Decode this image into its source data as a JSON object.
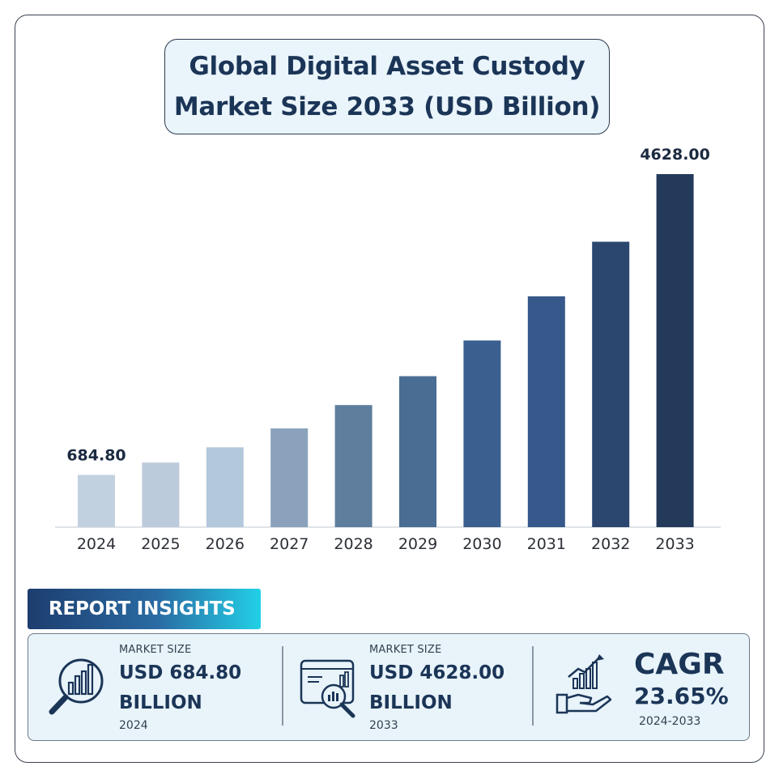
{
  "title_line1": "Global Digital Asset Custody",
  "title_line2": "Market Size 2033 (USD Billion)",
  "chart_data": {
    "type": "bar",
    "categories": [
      "2024",
      "2025",
      "2026",
      "2027",
      "2028",
      "2029",
      "2030",
      "2031",
      "2032",
      "2033"
    ],
    "values": [
      684.8,
      846.8,
      1047.0,
      1294.5,
      1600.6,
      1979.1,
      2447.1,
      3025.8,
      3741.3,
      4628.0
    ],
    "data_labels": [
      "684.80",
      "",
      "",
      "",
      "",
      "",
      "",
      "",
      "",
      "4628.00"
    ],
    "ylim": [
      0,
      4628.0
    ],
    "colors": [
      "#c2d1e0",
      "#bccbdb",
      "#b4c8dc",
      "#8aa2bb",
      "#5f7e9e",
      "#4a6d94",
      "#3b5f8e",
      "#37588a",
      "#2b4770",
      "#243a5a"
    ],
    "xlabel": "",
    "ylabel": "",
    "grid": false
  },
  "insights": {
    "header": "REPORT INSIGHTS",
    "card1": {
      "label": "MARKET SIZE",
      "value_line1": "USD 684.80",
      "value_line2": "BILLION",
      "year": "2024",
      "icon": "magnifier-chart-icon"
    },
    "card2": {
      "label": "MARKET SIZE",
      "value_line1": "USD 4628.00",
      "value_line2": "BILLION",
      "year": "2033",
      "icon": "dashboard-analytics-icon"
    },
    "card3": {
      "title": "CAGR",
      "value": "23.65%",
      "range": "2024-2033",
      "icon": "growth-hand-icon"
    }
  },
  "colors": {
    "title": "#1b3557",
    "panel_bg": "#e8f3fa",
    "title_bg": "#eaf4fb"
  }
}
